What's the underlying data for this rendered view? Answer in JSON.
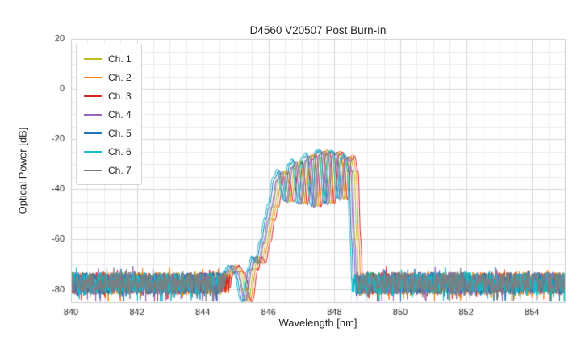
{
  "chart_data": {
    "type": "line",
    "title": "D4560 V20507 Post Burn-In",
    "xlabel": "Wavelength [nm]",
    "ylabel": "Optical Power [dB]",
    "xlim": [
      840,
      855
    ],
    "ylim": [
      -85,
      20
    ],
    "xticks": [
      840,
      842,
      844,
      846,
      848,
      850,
      852,
      854
    ],
    "yticks": [
      20,
      0,
      -20,
      -40,
      -60,
      -80
    ],
    "grid": true,
    "minor_grid_x_step": 0.5,
    "minor_grid_y_step": 5,
    "legend_position": "upper left",
    "noise_floor_db": -77.5,
    "noise_span_db": 9,
    "signal_window_nm": [
      844.55,
      848.7
    ],
    "notch_window_nm": [
      845.05,
      845.6
    ],
    "series": [
      {
        "name": "Ch. 1",
        "color": "#bcbd22",
        "offset_nm": 0.06,
        "delta_db": 0.0
      },
      {
        "name": "Ch. 2",
        "color": "#ff7f0e",
        "offset_nm": 0.12,
        "delta_db": 0.5
      },
      {
        "name": "Ch. 3",
        "color": "#d62728",
        "offset_nm": 0.18,
        "delta_db": 0.0
      },
      {
        "name": "Ch. 4",
        "color": "#9467bd",
        "offset_nm": -0.04,
        "delta_db": -0.5
      },
      {
        "name": "Ch. 5",
        "color": "#1f77b4",
        "offset_nm": -0.1,
        "delta_db": 0.5
      },
      {
        "name": "Ch. 6",
        "color": "#17becf",
        "offset_nm": -0.15,
        "delta_db": 1.0
      },
      {
        "name": "Ch. 7",
        "color": "#7f7f7f",
        "offset_nm": 0.0,
        "delta_db": 0.0
      }
    ],
    "envelope": [
      [
        844.55,
        -84
      ],
      [
        844.78,
        -73
      ],
      [
        844.92,
        -70.5
      ],
      [
        845.08,
        -73
      ],
      [
        845.32,
        -85
      ],
      [
        845.5,
        -72
      ],
      [
        845.62,
        -67
      ],
      [
        845.72,
        -69.5
      ],
      [
        845.88,
        -61
      ],
      [
        846.02,
        -52
      ],
      [
        846.12,
        -47
      ],
      [
        846.28,
        -36
      ],
      [
        846.42,
        -33
      ],
      [
        846.58,
        -45
      ],
      [
        846.74,
        -31
      ],
      [
        846.86,
        -29
      ],
      [
        847.0,
        -46
      ],
      [
        847.16,
        -28
      ],
      [
        847.28,
        -26.5
      ],
      [
        847.42,
        -47
      ],
      [
        847.56,
        -26
      ],
      [
        847.68,
        -25
      ],
      [
        847.82,
        -46
      ],
      [
        847.96,
        -26
      ],
      [
        848.08,
        -25.5
      ],
      [
        848.22,
        -44
      ],
      [
        848.34,
        -28
      ],
      [
        848.44,
        -27
      ],
      [
        848.54,
        -33
      ],
      [
        848.62,
        -60
      ],
      [
        848.7,
        -84
      ]
    ]
  }
}
